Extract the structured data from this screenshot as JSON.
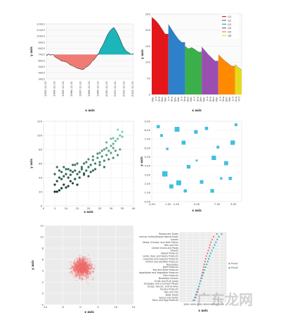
{
  "watermark": "广东龙网",
  "chart_data": [
    {
      "type": "area",
      "xlabel": "x axis",
      "ylabel": "y axis",
      "yticks": [
        "3422",
        "4422",
        "5422",
        "6422",
        "7422",
        "8422",
        "9422",
        "10422",
        "11422",
        "12422"
      ],
      "ylim": [
        3422,
        12422
      ],
      "baseline": 7422,
      "xticks": [
        "1993-12-31",
        "1994-12-31",
        "1995-12-31",
        "1996-12-31",
        "1997-12-31",
        "1998-12-31",
        "1999-12-31",
        "2000-12-31",
        "2001-12-31",
        "2002-12-31",
        "2003-12-31"
      ],
      "x": [
        0,
        0.5,
        1,
        1.5,
        2,
        2.5,
        3,
        3.5,
        4,
        4.5,
        5,
        5.5,
        6,
        6.5,
        7,
        7.5,
        8,
        8.5,
        9,
        9.5,
        10,
        10.5,
        11,
        11.5,
        12,
        12.5,
        13,
        13.5,
        14,
        14.5,
        15,
        15.5,
        16,
        16.5,
        17,
        17.5,
        18,
        18.5,
        19,
        19.5,
        20
      ],
      "values": [
        7200,
        7500,
        7300,
        7450,
        7000,
        6800,
        6600,
        6350,
        6300,
        6200,
        6000,
        5700,
        5600,
        5400,
        5200,
        5100,
        5000,
        4950,
        5300,
        5500,
        5800,
        6300,
        6600,
        7100,
        7600,
        8400,
        9000,
        9800,
        10600,
        11200,
        11600,
        11850,
        11300,
        10600,
        9800,
        8900,
        8300,
        7900,
        7700,
        7450,
        7550
      ],
      "colors": {
        "above": "#1cb5b9",
        "below": "#f07a74"
      }
    },
    {
      "type": "area",
      "xlabel": "x axis",
      "ylabel": "y axis",
      "ylim": [
        0,
        250
      ],
      "yticks": [
        "0",
        "50",
        "100",
        "150",
        "200",
        "250"
      ],
      "xticks": [
        "Mar",
        "Jun",
        "Sep",
        "Dec",
        "Mar",
        "Jun",
        "Sep",
        "Dec",
        "Mar",
        "Jun",
        "Sep",
        "Dec",
        "Mar",
        "Jun",
        "Sep",
        "Dec",
        "Mar",
        "Jun",
        "Sep",
        "Dec",
        "Mar",
        "Jun",
        "Sep",
        "Dec",
        "Mar",
        "Jun",
        "Aug",
        "Oct"
      ],
      "legend": [
        "Q1",
        "Q2",
        "Q3",
        "Q4",
        "Q5",
        "Q6"
      ],
      "legend_position": "top-right",
      "series": [
        {
          "name": "Q1",
          "color": "#e3161a",
          "x": [
            0,
            1,
            2,
            3,
            4
          ],
          "values": [
            240,
            232,
            220,
            205,
            188
          ]
        },
        {
          "name": "Q2",
          "color": "#2d80c9",
          "x": [
            5,
            6,
            7,
            8,
            9
          ],
          "values": [
            218,
            202,
            186,
            172,
            162
          ]
        },
        {
          "name": "Q3",
          "color": "#3bb04a",
          "x": [
            10,
            11,
            12,
            13,
            14
          ],
          "values": [
            150,
            142,
            146,
            140,
            132
          ]
        },
        {
          "name": "Q4",
          "color": "#9a4fb0",
          "x": [
            15,
            16,
            17,
            18,
            19
          ],
          "values": [
            148,
            136,
            124,
            114,
            104
          ]
        },
        {
          "name": "Q5",
          "color": "#ff8a00",
          "x": [
            20,
            21,
            22,
            23,
            24
          ],
          "values": [
            124,
            114,
            104,
            96,
            88
          ]
        },
        {
          "name": "Q6",
          "color": "#e6da1e",
          "x": [
            25,
            26,
            27
          ],
          "values": [
            94,
            84,
            76
          ]
        }
      ]
    },
    {
      "type": "scatter",
      "xlabel": "x axis",
      "ylabel": "y axis",
      "xlim": [
        0,
        40
      ],
      "ylim": [
        0,
        120
      ],
      "xticks": [
        "0",
        "5",
        "10",
        "15",
        "20",
        "25",
        "30",
        "35",
        "40"
      ],
      "yticks": [
        "0",
        "20",
        "40",
        "60",
        "80",
        "100",
        "120"
      ],
      "points": [
        [
          5,
          20
        ],
        [
          6,
          20
        ],
        [
          7,
          22
        ],
        [
          8,
          25
        ],
        [
          9,
          30
        ],
        [
          10,
          26
        ],
        [
          11,
          28
        ],
        [
          12,
          35
        ],
        [
          13,
          32
        ],
        [
          14,
          38
        ],
        [
          15,
          30
        ],
        [
          5,
          30
        ],
        [
          6,
          35
        ],
        [
          7,
          40
        ],
        [
          8,
          38
        ],
        [
          9,
          42
        ],
        [
          10,
          45
        ],
        [
          11,
          40
        ],
        [
          12,
          44
        ],
        [
          13,
          48
        ],
        [
          14,
          50
        ],
        [
          15,
          45
        ],
        [
          16,
          48
        ],
        [
          17,
          52
        ],
        [
          18,
          46
        ],
        [
          19,
          50
        ],
        [
          20,
          55
        ],
        [
          21,
          48
        ],
        [
          5,
          45
        ],
        [
          7,
          50
        ],
        [
          9,
          55
        ],
        [
          11,
          52
        ],
        [
          13,
          58
        ],
        [
          15,
          60
        ],
        [
          17,
          55
        ],
        [
          19,
          62
        ],
        [
          21,
          58
        ],
        [
          22,
          65
        ],
        [
          23,
          60
        ],
        [
          24,
          68
        ],
        [
          25,
          62
        ],
        [
          26,
          70
        ],
        [
          27,
          64
        ],
        [
          28,
          72
        ],
        [
          29,
          66
        ],
        [
          30,
          75
        ],
        [
          31,
          68
        ],
        [
          32,
          78
        ],
        [
          33,
          72
        ],
        [
          34,
          80
        ],
        [
          18,
          60
        ],
        [
          20,
          66
        ],
        [
          22,
          70
        ],
        [
          24,
          74
        ],
        [
          26,
          78
        ],
        [
          28,
          82
        ],
        [
          30,
          85
        ],
        [
          31,
          88
        ],
        [
          32,
          92
        ],
        [
          33,
          95
        ],
        [
          34,
          100
        ],
        [
          35,
          105
        ],
        [
          30,
          95
        ],
        [
          28,
          90
        ],
        [
          25,
          75
        ],
        [
          27,
          80
        ],
        [
          29,
          78
        ],
        [
          31,
          82
        ],
        [
          23,
          52
        ],
        [
          25,
          58
        ],
        [
          27,
          55
        ],
        [
          16,
          40
        ],
        [
          18,
          44
        ],
        [
          20,
          42
        ],
        [
          22,
          50
        ],
        [
          14,
          58
        ],
        [
          12,
          50
        ],
        [
          10,
          52
        ],
        [
          8,
          48
        ],
        [
          6,
          55
        ],
        [
          33,
          108
        ],
        [
          31,
          96
        ],
        [
          35,
          98
        ]
      ]
    },
    {
      "type": "scatter",
      "xlabel": "x axis",
      "ylabel": "y axis",
      "xlim": [
        -0.5,
        10.5
      ],
      "ylim": [
        0,
        9
      ],
      "xticks": [
        "-0.50",
        "1.50",
        "2.50",
        "5.00",
        "7.50",
        "9.50"
      ],
      "yticks": [
        "0.00",
        "1.00",
        "2.00",
        "3.00",
        "4.00",
        "5.00",
        "6.00",
        "7.00",
        "8.00",
        "9.00"
      ],
      "points": [
        [
          0.3,
          8.4,
          0.35
        ],
        [
          0.7,
          7.4,
          0.3
        ],
        [
          1.4,
          5.9,
          0.25
        ],
        [
          2.6,
          8.1,
          0.55
        ],
        [
          3.4,
          6.6,
          0.45
        ],
        [
          4.9,
          7.8,
          0.4
        ],
        [
          6.2,
          8.2,
          0.35
        ],
        [
          7.6,
          6.1,
          0.3
        ],
        [
          9.4,
          6.6,
          0.5
        ],
        [
          9.8,
          8.6,
          0.3
        ],
        [
          1.1,
          3.1,
          0.6
        ],
        [
          2.8,
          2.1,
          0.55
        ],
        [
          4.0,
          3.9,
          0.4
        ],
        [
          5.6,
          2.2,
          0.4
        ],
        [
          7.1,
          4.9,
          0.5
        ],
        [
          8.6,
          4.3,
          0.45
        ],
        [
          9.1,
          2.6,
          0.35
        ],
        [
          3.6,
          1.2,
          0.35
        ],
        [
          6.9,
          1.2,
          0.4
        ],
        [
          8.0,
          2.6,
          0.25
        ],
        [
          1.9,
          1.7,
          0.45
        ],
        [
          5.0,
          4.6,
          0.2
        ]
      ]
    },
    {
      "type": "scatter",
      "xlabel": "x axis",
      "ylabel": "y axis",
      "xlim": [
        -10,
        15
      ],
      "ylim": [
        -2,
        12
      ],
      "xticks": [
        "-10",
        "-5",
        "0",
        "5",
        "10",
        "15"
      ],
      "yticks": [
        "-2",
        "0",
        "2",
        "4",
        "6",
        "8",
        "10",
        "12"
      ],
      "cluster": {
        "center": [
          0.5,
          4.5
        ],
        "spread": [
          3.2,
          2.0
        ],
        "n": 1400,
        "color": "#f26b6b"
      }
    },
    {
      "type": "scatter",
      "xlabel": "x axis",
      "ylabel": "",
      "xlim": [
        0,
        14000
      ],
      "xticks": [
        "2000",
        "4000",
        "6000",
        "8000",
        "10000",
        "12000"
      ],
      "legend": [
        "Price1",
        "Price2"
      ],
      "categories": [
        "Restaurant Foods",
        "American Indian/Alaska Native Foods",
        "Snacks",
        "Meals, Entrees, and Side Dishes",
        "Fats and Oils",
        "Cereal Grains and Pasta",
        "Sweets",
        "Baked Products",
        "Lamb, Veal, and Game Products",
        "Legumes and Legume Products",
        "Finfish and Shellfish Products",
        "Beverages",
        "Beef Products",
        "Nut and Seed Products",
        "Vegetables and Vegetable Products",
        "Pork Products",
        "Breakfast Cereals",
        "Fruits and Fruit Juices",
        "Sausages and Luncheon Meats",
        "Soups, Sauces, and Gravies",
        "Poultry Products",
        "Fats and Oils",
        "Baby Foods",
        "Spices and Herbs",
        "Dairy and Egg Products"
      ],
      "series": [
        {
          "name": "Price1",
          "color": "#f0707a",
          "values": [
            11200,
            10200,
            9800,
            9400,
            9100,
            8900,
            8600,
            8300,
            8000,
            7800,
            7600,
            7400,
            7200,
            7000,
            6800,
            6600,
            6400,
            6200,
            6000,
            5800,
            5600,
            5400,
            5100,
            4800,
            4400
          ]
        },
        {
          "name": "Price2",
          "color": "#29b9c6",
          "values": [
            12600,
            11800,
            11300,
            10900,
            10500,
            10100,
            9700,
            9300,
            9000,
            8700,
            8400,
            8100,
            7800,
            7500,
            7200,
            6900,
            6600,
            6300,
            6000,
            5700,
            5400,
            5100,
            4800,
            4500,
            4100
          ]
        }
      ]
    }
  ]
}
